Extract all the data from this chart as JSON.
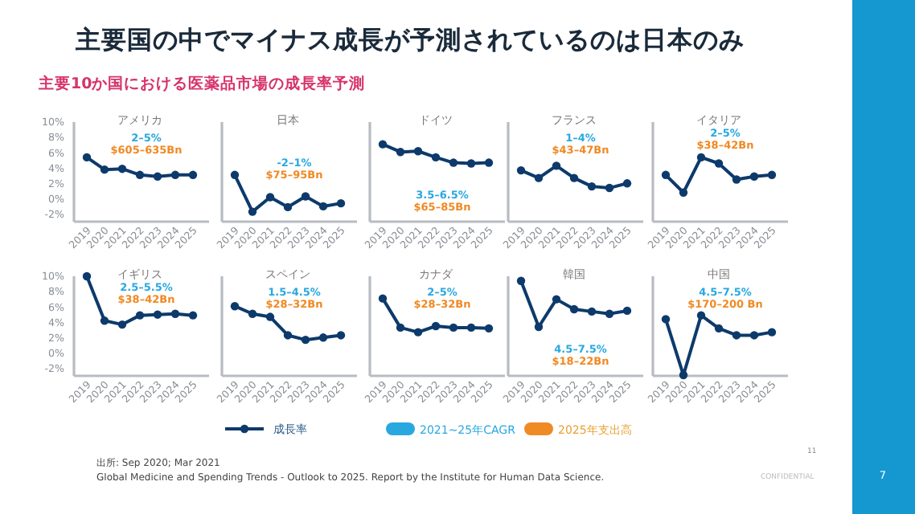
{
  "chart_data": [
    {
      "type": "other",
      "title": "主要国の中でマイナス成長が予測されているのは日本のみ",
      "subtitle": "主要10か国における医薬品市場の成長率予測",
      "annotations": [
        "2021~25年CAGR",
        "2025年支出高",
        "出所: Sep 2020; Mar 2021",
        "Global Medicine and Spending Trends - Outlook to 2025. Report by the Institute for Human Data Science.",
        "11",
        "CONFIDENTIAL",
        "7"
      ]
    },
    {
      "type": "line",
      "title": "アメリカ",
      "annotations": [
        "2–5%",
        "$605–635Bn"
      ],
      "categories": [
        "2019",
        "2020",
        "2021",
        "2022",
        "2023",
        "2024",
        "2025"
      ],
      "series": [
        {
          "color": "#0d3a6b",
          "values": [
            5.4,
            3.8,
            3.9,
            3.1,
            2.9,
            3.1,
            3.1
          ]
        }
      ],
      "ylim": [
        -3,
        10
      ],
      "yticks": [
        {
          "value": -2,
          "label": "-2%"
        },
        {
          "value": 0,
          "label": "0%"
        },
        {
          "value": 2,
          "label": "2%"
        },
        {
          "value": 4,
          "label": "4%"
        },
        {
          "value": 6,
          "label": "6%"
        },
        {
          "value": 8,
          "label": "8%"
        },
        {
          "value": 10,
          "label": "10%"
        }
      ],
      "marker": "circle"
    },
    {
      "type": "line",
      "title": "日本",
      "annotations": [
        "-2–1%",
        "$75–95Bn"
      ],
      "categories": [
        "2019",
        "2020",
        "2021",
        "2022",
        "2023",
        "2024",
        "2025"
      ],
      "series": [
        {
          "color": "#0d3a6b",
          "values": [
            3.1,
            -1.7,
            0.2,
            -1.1,
            0.3,
            -1.0,
            -0.6
          ]
        }
      ],
      "ylim": [
        -3,
        10
      ],
      "tick_labels": "x",
      "marker": "circle"
    },
    {
      "type": "line",
      "title": "ドイツ",
      "annotations": [
        "3.5–6.5%",
        "$65–85Bn"
      ],
      "categories": [
        "2019",
        "2020",
        "2021",
        "2022",
        "2023",
        "2024",
        "2025"
      ],
      "series": [
        {
          "color": "#0d3a6b",
          "values": [
            7.1,
            6.1,
            6.2,
            5.4,
            4.7,
            4.6,
            4.7
          ]
        }
      ],
      "ylim": [
        -3,
        10
      ],
      "tick_labels": "x",
      "marker": "circle"
    },
    {
      "type": "line",
      "title": "フランス",
      "annotations": [
        "1–4%",
        "$43–47Bn"
      ],
      "categories": [
        "2019",
        "2020",
        "2021",
        "2022",
        "2023",
        "2024",
        "2025"
      ],
      "series": [
        {
          "color": "#0d3a6b",
          "values": [
            3.7,
            2.7,
            4.3,
            2.7,
            1.6,
            1.4,
            2.0
          ]
        }
      ],
      "ylim": [
        -3,
        10
      ],
      "tick_labels": "x",
      "marker": "circle"
    },
    {
      "type": "line",
      "title": "イタリア",
      "annotations": [
        "2–5%",
        "$38–42Bn"
      ],
      "categories": [
        "2019",
        "2020",
        "2021",
        "2022",
        "2023",
        "2024",
        "2025"
      ],
      "series": [
        {
          "color": "#0d3a6b",
          "values": [
            3.1,
            0.8,
            5.4,
            4.6,
            2.5,
            2.9,
            3.1
          ]
        }
      ],
      "ylim": [
        -3,
        10
      ],
      "tick_labels": "x",
      "marker": "circle"
    },
    {
      "type": "line",
      "title": "イギリス",
      "annotations": [
        "2.5–5.5%",
        "$38–42Bn"
      ],
      "categories": [
        "2019",
        "2020",
        "2021",
        "2022",
        "2023",
        "2024",
        "2025"
      ],
      "series": [
        {
          "color": "#0d3a6b",
          "values": [
            10.0,
            4.2,
            3.7,
            4.9,
            5.0,
            5.1,
            4.9
          ]
        }
      ],
      "ylim": [
        -3,
        10
      ],
      "yticks": [
        {
          "value": -2,
          "label": "-2%"
        },
        {
          "value": 0,
          "label": "0%"
        },
        {
          "value": 2,
          "label": "2%"
        },
        {
          "value": 4,
          "label": "4%"
        },
        {
          "value": 6,
          "label": "6%"
        },
        {
          "value": 8,
          "label": "8%"
        },
        {
          "value": 10,
          "label": "10%"
        }
      ],
      "marker": "circle"
    },
    {
      "type": "line",
      "title": "スペイン",
      "annotations": [
        "1.5–4.5%",
        "$28–32Bn"
      ],
      "categories": [
        "2019",
        "2020",
        "2021",
        "2022",
        "2023",
        "2024",
        "2025"
      ],
      "series": [
        {
          "name": "成長率",
          "color": "#0d3a6b",
          "values": [
            6.1,
            5.1,
            4.7,
            2.3,
            1.7,
            2.0,
            2.3
          ]
        }
      ],
      "ylim": [
        -3,
        10
      ],
      "tick_labels": "x",
      "marker": "circle",
      "legend": "bottom"
    },
    {
      "type": "line",
      "title": "カナダ",
      "annotations": [
        "2–5%",
        "$28–32Bn"
      ],
      "categories": [
        "2019",
        "2020",
        "2021",
        "2022",
        "2023",
        "2024",
        "2025"
      ],
      "series": [
        {
          "color": "#0d3a6b",
          "values": [
            7.1,
            3.3,
            2.7,
            3.5,
            3.3,
            3.3,
            3.2
          ]
        }
      ],
      "ylim": [
        -3,
        10
      ],
      "tick_labels": "x",
      "marker": "circle"
    },
    {
      "type": "line",
      "title": "韓国",
      "annotations": [
        "4.5–7.5%",
        "$18–22Bn"
      ],
      "categories": [
        "2019",
        "2020",
        "2021",
        "2022",
        "2023",
        "2024",
        "2025"
      ],
      "series": [
        {
          "color": "#0d3a6b",
          "values": [
            9.4,
            3.4,
            7.0,
            5.7,
            5.4,
            5.1,
            5.5
          ]
        }
      ],
      "ylim": [
        -3,
        10
      ],
      "tick_labels": "x",
      "marker": "circle"
    },
    {
      "type": "line",
      "title": "中国",
      "annotations": [
        "4.5–7.5%",
        "$170–200 Bn"
      ],
      "categories": [
        "2019",
        "2020",
        "2021",
        "2022",
        "2023",
        "2024",
        "2025"
      ],
      "series": [
        {
          "color": "#0d3a6b",
          "values": [
            4.4,
            -2.9,
            4.9,
            3.2,
            2.3,
            2.3,
            2.7
          ]
        }
      ],
      "ylim": [
        -3,
        10
      ],
      "tick_labels": "x",
      "marker": "circle"
    }
  ]
}
